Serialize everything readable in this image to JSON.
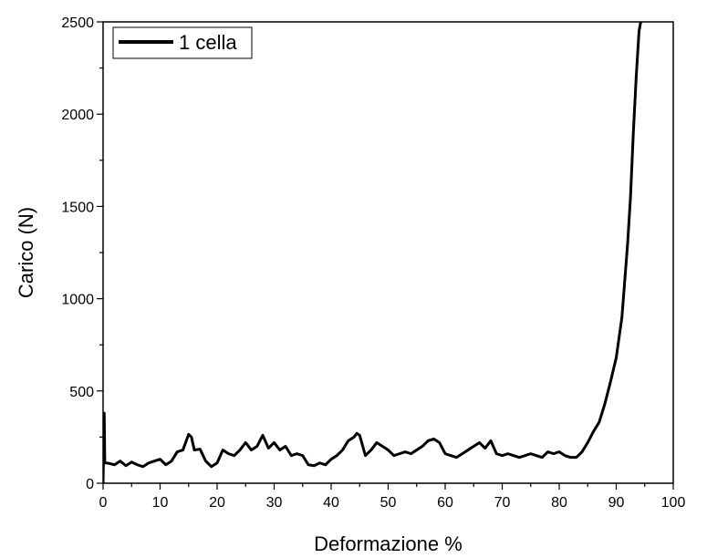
{
  "chart_data": {
    "type": "line",
    "xlabel": "Deformazione %",
    "ylabel": "Carico (N)",
    "xlim": [
      0,
      100
    ],
    "ylim": [
      0,
      2500
    ],
    "xticks": [
      "0",
      "10",
      "20",
      "30",
      "40",
      "50",
      "60",
      "70",
      "80",
      "90",
      "100"
    ],
    "yticks": [
      "0",
      "500",
      "1000",
      "1500",
      "2000",
      "2500"
    ],
    "grid": false,
    "legend_position": "top-left",
    "series": [
      {
        "name": "1 cella",
        "color": "#000000",
        "x": [
          0,
          0.2,
          0.3,
          0.5,
          1,
          2,
          3,
          4,
          5,
          6,
          7,
          8,
          9,
          10,
          11,
          12,
          13,
          14,
          15,
          15.5,
          16,
          17,
          18,
          19,
          20,
          21,
          22,
          23,
          24,
          25,
          26,
          27,
          28,
          29,
          30,
          31,
          32,
          33,
          34,
          35,
          36,
          37,
          38,
          39,
          40,
          41,
          42,
          43,
          44,
          44.5,
          45,
          46,
          47,
          48,
          49,
          50,
          51,
          52,
          53,
          54,
          55,
          56,
          57,
          58,
          59,
          60,
          61,
          62,
          63,
          64,
          65,
          66,
          67,
          68,
          69,
          70,
          71,
          72,
          73,
          74,
          75,
          76,
          77,
          78,
          79,
          80,
          81,
          82,
          83,
          84,
          85,
          86,
          87,
          88,
          89,
          90,
          91,
          92,
          92.5,
          93,
          93.5,
          94,
          94.3
        ],
        "y": [
          0,
          380,
          110,
          110,
          108,
          100,
          120,
          95,
          115,
          100,
          90,
          110,
          120,
          130,
          100,
          120,
          170,
          180,
          265,
          250,
          180,
          185,
          120,
          90,
          110,
          180,
          160,
          150,
          180,
          220,
          180,
          200,
          260,
          190,
          220,
          180,
          200,
          150,
          160,
          150,
          100,
          95,
          110,
          100,
          130,
          150,
          180,
          230,
          250,
          270,
          260,
          150,
          180,
          220,
          200,
          180,
          150,
          160,
          170,
          160,
          180,
          200,
          230,
          240,
          220,
          160,
          150,
          140,
          160,
          180,
          200,
          220,
          190,
          230,
          160,
          150,
          160,
          150,
          140,
          150,
          160,
          150,
          140,
          170,
          160,
          170,
          150,
          140,
          140,
          170,
          220,
          280,
          330,
          430,
          550,
          680,
          900,
          1300,
          1550,
          1900,
          2200,
          2450,
          2500
        ]
      }
    ]
  }
}
